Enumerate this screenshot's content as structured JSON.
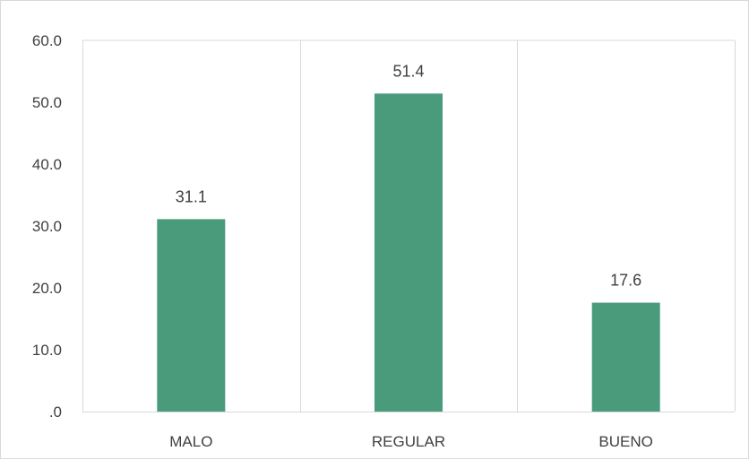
{
  "chart_data": {
    "type": "bar",
    "categories": [
      "MALO",
      "REGULAR",
      "BUENO"
    ],
    "values": [
      31.1,
      51.4,
      17.6
    ],
    "data_labels": [
      "31.1",
      "51.4",
      "17.6"
    ],
    "title": "",
    "xlabel": "",
    "ylabel": "",
    "ylim": [
      0,
      60
    ],
    "yticks": [
      0,
      10,
      20,
      30,
      40,
      50,
      60
    ],
    "ytick_labels": [
      ".0",
      "10.0",
      "20.0",
      "30.0",
      "40.0",
      "50.0",
      "60.0"
    ],
    "grid": "vertical category separators and top border",
    "legend": "none",
    "bar_color": "#4a9a7c",
    "grid_color": "#d9d9d9"
  }
}
